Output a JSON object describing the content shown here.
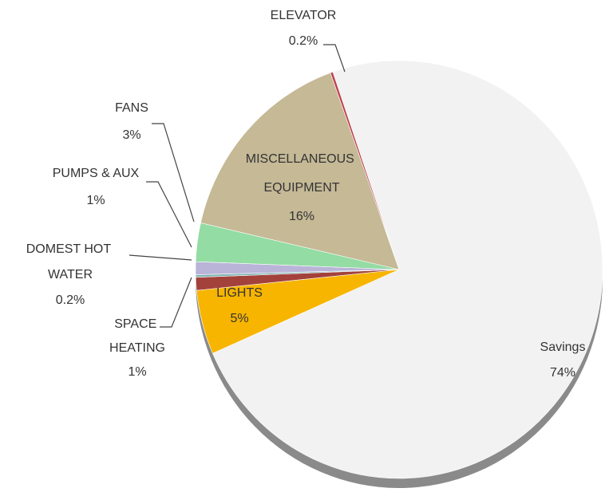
{
  "chart_data": {
    "type": "pie",
    "categories": [
      "Savings",
      "LIGHTS",
      "SPACE HEATING",
      "DOMEST HOT WATER",
      "PUMPS & AUX",
      "FANS",
      "MISCELLANEOUS EQUIPMENT",
      "ELEVATOR"
    ],
    "values": [
      74,
      5,
      1,
      0.2,
      1,
      3,
      16,
      0.2
    ],
    "value_labels": [
      "74%",
      "5%",
      "1%",
      "0.2%",
      "1%",
      "3%",
      "16%",
      "0.2%"
    ],
    "colors": [
      "#f2f2f2",
      "#f7b500",
      "#a3413b",
      "#7fb2b0",
      "#bab4d8",
      "#93dca3",
      "#c5b996",
      "#c0404e"
    ]
  }
}
